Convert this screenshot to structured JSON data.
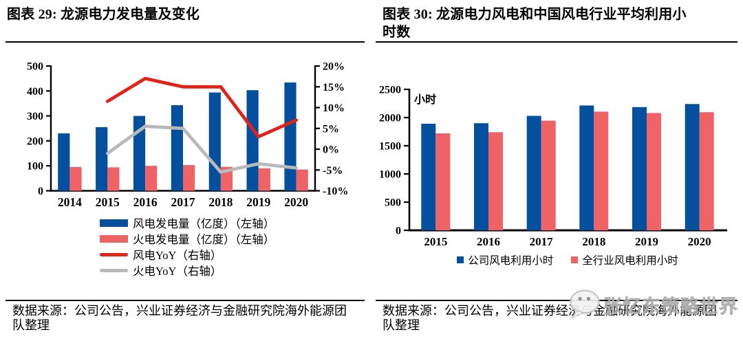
{
  "colors": {
    "wind_blue": "#04509e",
    "thermal_pink": "#ef6266",
    "wind_yoy_red": "#e2231a",
    "thermal_yoy_gray": "#b9b9b9",
    "axis_black": "#000000"
  },
  "figure29": {
    "title": "图表 29: 龙源电力发电量及变化",
    "chart_data": {
      "type": "bar+line",
      "categories": [
        "2014",
        "2015",
        "2016",
        "2017",
        "2018",
        "2019",
        "2020"
      ],
      "left_axis": {
        "ticks": [
          "0",
          "100",
          "200",
          "300",
          "400",
          "500"
        ],
        "ylim": [
          0,
          500
        ]
      },
      "right_axis": {
        "ticks": [
          "-10%",
          "-5%",
          "0%",
          "5%",
          "10%",
          "15%",
          "20%"
        ],
        "ylim": [
          -10,
          20
        ]
      },
      "grid": false,
      "legend_position": "bottom-left",
      "series": [
        {
          "name": "风电发电量（亿度）（左轴）",
          "type": "bar",
          "axis": "left",
          "color_key": "wind_blue",
          "values": [
            230,
            255,
            300,
            343,
            394,
            403,
            434
          ]
        },
        {
          "name": "火电发电量（亿度）（左轴）",
          "type": "bar",
          "axis": "left",
          "color_key": "thermal_pink",
          "values": [
            95,
            94,
            100,
            103,
            96,
            90,
            85
          ]
        },
        {
          "name": "风电YoY（右轴）",
          "type": "line",
          "axis": "right",
          "color_key": "wind_yoy_red",
          "values": [
            null,
            11.5,
            17,
            15,
            15,
            3,
            7
          ]
        },
        {
          "name": "火电YoY（右轴）",
          "type": "line",
          "axis": "right",
          "color_key": "thermal_yoy_gray",
          "values": [
            null,
            -1,
            5.5,
            5,
            -5.5,
            -3.5,
            -4.5
          ]
        }
      ]
    },
    "source_lines": [
      "数据来源：公司公告，兴业证券经济与金融研究院海外能源团",
      "队整理"
    ]
  },
  "figure30": {
    "title_line1": "图表 30: 龙源电力风电和中国风电行业平均利用小",
    "title_line2": "时数",
    "chart_data": {
      "type": "bar",
      "categories": [
        "2015",
        "2016",
        "2017",
        "2018",
        "2019",
        "2020"
      ],
      "y_axis": {
        "unit_label": "小时",
        "ticks": [
          "0",
          "500",
          "1000",
          "1500",
          "2000",
          "2500"
        ],
        "ylim": [
          0,
          2500
        ]
      },
      "grid": false,
      "legend_position": "bottom-center",
      "series": [
        {
          "name": "公司风电利用小时",
          "color_key": "wind_blue",
          "values": [
            1890,
            1900,
            2030,
            2215,
            2185,
            2240
          ]
        },
        {
          "name": "全行业风电利用小时",
          "color_key": "thermal_pink",
          "values": [
            1720,
            1740,
            1945,
            2105,
            2080,
            2095
          ]
        }
      ]
    },
    "source_lines": [
      "数据来源：公司公告，兴业证券经济与金融研究院海外能源团",
      "队整理"
    ],
    "watermark": {
      "icon": "wechat-icon",
      "text": "张忆东策略世界"
    }
  }
}
